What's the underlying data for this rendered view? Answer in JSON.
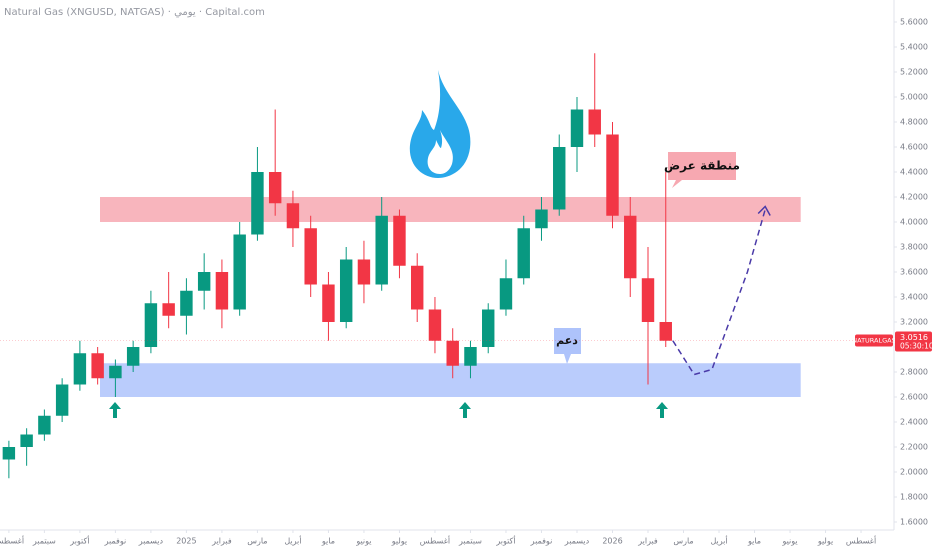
{
  "chart_data": {
    "type": "candlestick",
    "header": "Natural Gas (XNGUSD, NATGAS) · يومي · Capital.com",
    "up_color": "#089981",
    "down_color": "#f23645",
    "x": [
      0,
      0.5,
      1,
      1.5,
      2,
      2.5,
      3,
      3.5,
      4,
      4.5,
      5,
      5.5,
      6,
      6.5,
      7,
      7.5,
      8,
      8.5,
      9,
      9.5,
      10,
      10.5,
      11,
      11.5,
      12,
      12.5,
      13,
      13.5,
      14,
      14.5,
      15,
      15.5,
      16,
      16.5,
      17,
      17.5,
      18,
      18.5
    ],
    "open": [
      2.1,
      2.2,
      2.3,
      2.45,
      2.7,
      2.95,
      2.75,
      2.85,
      3.0,
      3.35,
      3.25,
      3.45,
      3.6,
      3.3,
      3.9,
      4.4,
      4.15,
      3.95,
      3.5,
      3.2,
      3.7,
      3.5,
      4.05,
      3.65,
      3.3,
      3.05,
      2.85,
      3.0,
      3.3,
      3.55,
      3.95,
      4.1,
      4.6,
      4.9,
      4.7,
      4.05,
      3.55,
      3.2
    ],
    "high": [
      2.25,
      2.35,
      2.5,
      2.75,
      3.05,
      3.0,
      2.9,
      3.05,
      3.45,
      3.6,
      3.55,
      3.75,
      3.7,
      4.0,
      4.6,
      4.9,
      4.25,
      4.05,
      3.6,
      3.8,
      3.85,
      4.2,
      4.1,
      3.75,
      3.4,
      3.15,
      3.05,
      3.35,
      3.7,
      4.05,
      4.2,
      4.7,
      5.0,
      5.35,
      4.8,
      4.2,
      3.8,
      4.4
    ],
    "low": [
      1.95,
      2.05,
      2.25,
      2.4,
      2.65,
      2.7,
      2.6,
      2.8,
      2.95,
      3.15,
      3.1,
      3.3,
      3.15,
      3.25,
      3.85,
      4.05,
      3.8,
      3.4,
      3.05,
      3.15,
      3.35,
      3.45,
      3.55,
      3.2,
      2.95,
      2.75,
      2.75,
      2.95,
      3.25,
      3.5,
      3.85,
      4.05,
      4.4,
      4.6,
      3.95,
      3.4,
      2.7,
      3.0
    ],
    "close": [
      2.2,
      2.3,
      2.45,
      2.7,
      2.95,
      2.75,
      2.85,
      3.0,
      3.35,
      3.25,
      3.45,
      3.6,
      3.3,
      3.9,
      4.4,
      4.15,
      3.95,
      3.5,
      3.2,
      3.7,
      3.5,
      4.05,
      3.65,
      3.3,
      3.05,
      2.85,
      3.0,
      3.3,
      3.55,
      3.95,
      4.1,
      4.6,
      4.9,
      4.7,
      4.05,
      3.55,
      3.2,
      3.05
    ],
    "xlim": [
      -0.25,
      24.9
    ],
    "xticks": [
      {
        "value": 0,
        "label": "أغسطس"
      },
      {
        "value": 1,
        "label": "سبتمبر"
      },
      {
        "value": 2,
        "label": "أكتوبر"
      },
      {
        "value": 3,
        "label": "نوفمبر"
      },
      {
        "value": 4,
        "label": "ديسمبر"
      },
      {
        "value": 5,
        "label": "2025"
      },
      {
        "value": 6,
        "label": "فبراير"
      },
      {
        "value": 7,
        "label": "مارس"
      },
      {
        "value": 8,
        "label": "أبريل"
      },
      {
        "value": 9,
        "label": "مايو"
      },
      {
        "value": 10,
        "label": "يونيو"
      },
      {
        "value": 11,
        "label": "يوليو"
      },
      {
        "value": 12,
        "label": "أغسطس"
      },
      {
        "value": 13,
        "label": "سبتمبر"
      },
      {
        "value": 14,
        "label": "أكتوبر"
      },
      {
        "value": 15,
        "label": "نوفمبر"
      },
      {
        "value": 16,
        "label": "ديسمبر"
      },
      {
        "value": 17,
        "label": "2026"
      },
      {
        "value": 18,
        "label": "فبراير"
      },
      {
        "value": 19,
        "label": "مارس"
      },
      {
        "value": 20,
        "label": "أبريل"
      },
      {
        "value": 21,
        "label": "مايو"
      },
      {
        "value": 22,
        "label": "يونيو"
      },
      {
        "value": 23,
        "label": "يوليو"
      },
      {
        "value": 24,
        "label": "أغسطس"
      }
    ],
    "ylim": [
      1.536,
      5.776
    ],
    "yticks": [
      {
        "value": 5.6,
        "label": "5.6000"
      },
      {
        "value": 5.4,
        "label": "5.4000"
      },
      {
        "value": 5.2,
        "label": "5.2000"
      },
      {
        "value": 5.0,
        "label": "5.0000"
      },
      {
        "value": 4.8,
        "label": "4.8000"
      },
      {
        "value": 4.6,
        "label": "4.6000"
      },
      {
        "value": 4.4,
        "label": "4.4000"
      },
      {
        "value": 4.2,
        "label": "4.2000"
      },
      {
        "value": 4.0,
        "label": "4.0000"
      },
      {
        "value": 3.8,
        "label": "3.8000"
      },
      {
        "value": 3.6,
        "label": "3.6000"
      },
      {
        "value": 3.4,
        "label": "3.4000"
      },
      {
        "value": 3.2,
        "label": "3.2000"
      },
      {
        "value": 3.0,
        "label": "3.0000"
      },
      {
        "value": 2.8,
        "label": "2.8000"
      },
      {
        "value": 2.6,
        "label": "2.6000"
      },
      {
        "value": 2.4,
        "label": "2.4000"
      },
      {
        "value": 2.2,
        "label": "2.2000"
      },
      {
        "value": 2.0,
        "label": "2.0000"
      },
      {
        "value": 1.8,
        "label": "1.8000"
      },
      {
        "value": 1.6,
        "label": "1.6000"
      }
    ],
    "grid": false,
    "zones": [
      {
        "label": "منطقة عرض",
        "low": 4.0,
        "high": 4.2,
        "color": "#f7a8b1",
        "x_end": 22.3
      },
      {
        "label": "دعم",
        "low": 2.6,
        "high": 2.87,
        "color": "#aec3fb",
        "x_end": 22.3
      }
    ],
    "projection": {
      "x": [
        18.7,
        19.3,
        19.8,
        20.8,
        21.3
      ],
      "y": [
        3.05,
        2.78,
        2.82,
        3.6,
        4.1
      ],
      "color": "#4a3aa8"
    },
    "symbol": "NATURALGAS",
    "last_price": 3.0516,
    "countdown": "05:30:10"
  }
}
